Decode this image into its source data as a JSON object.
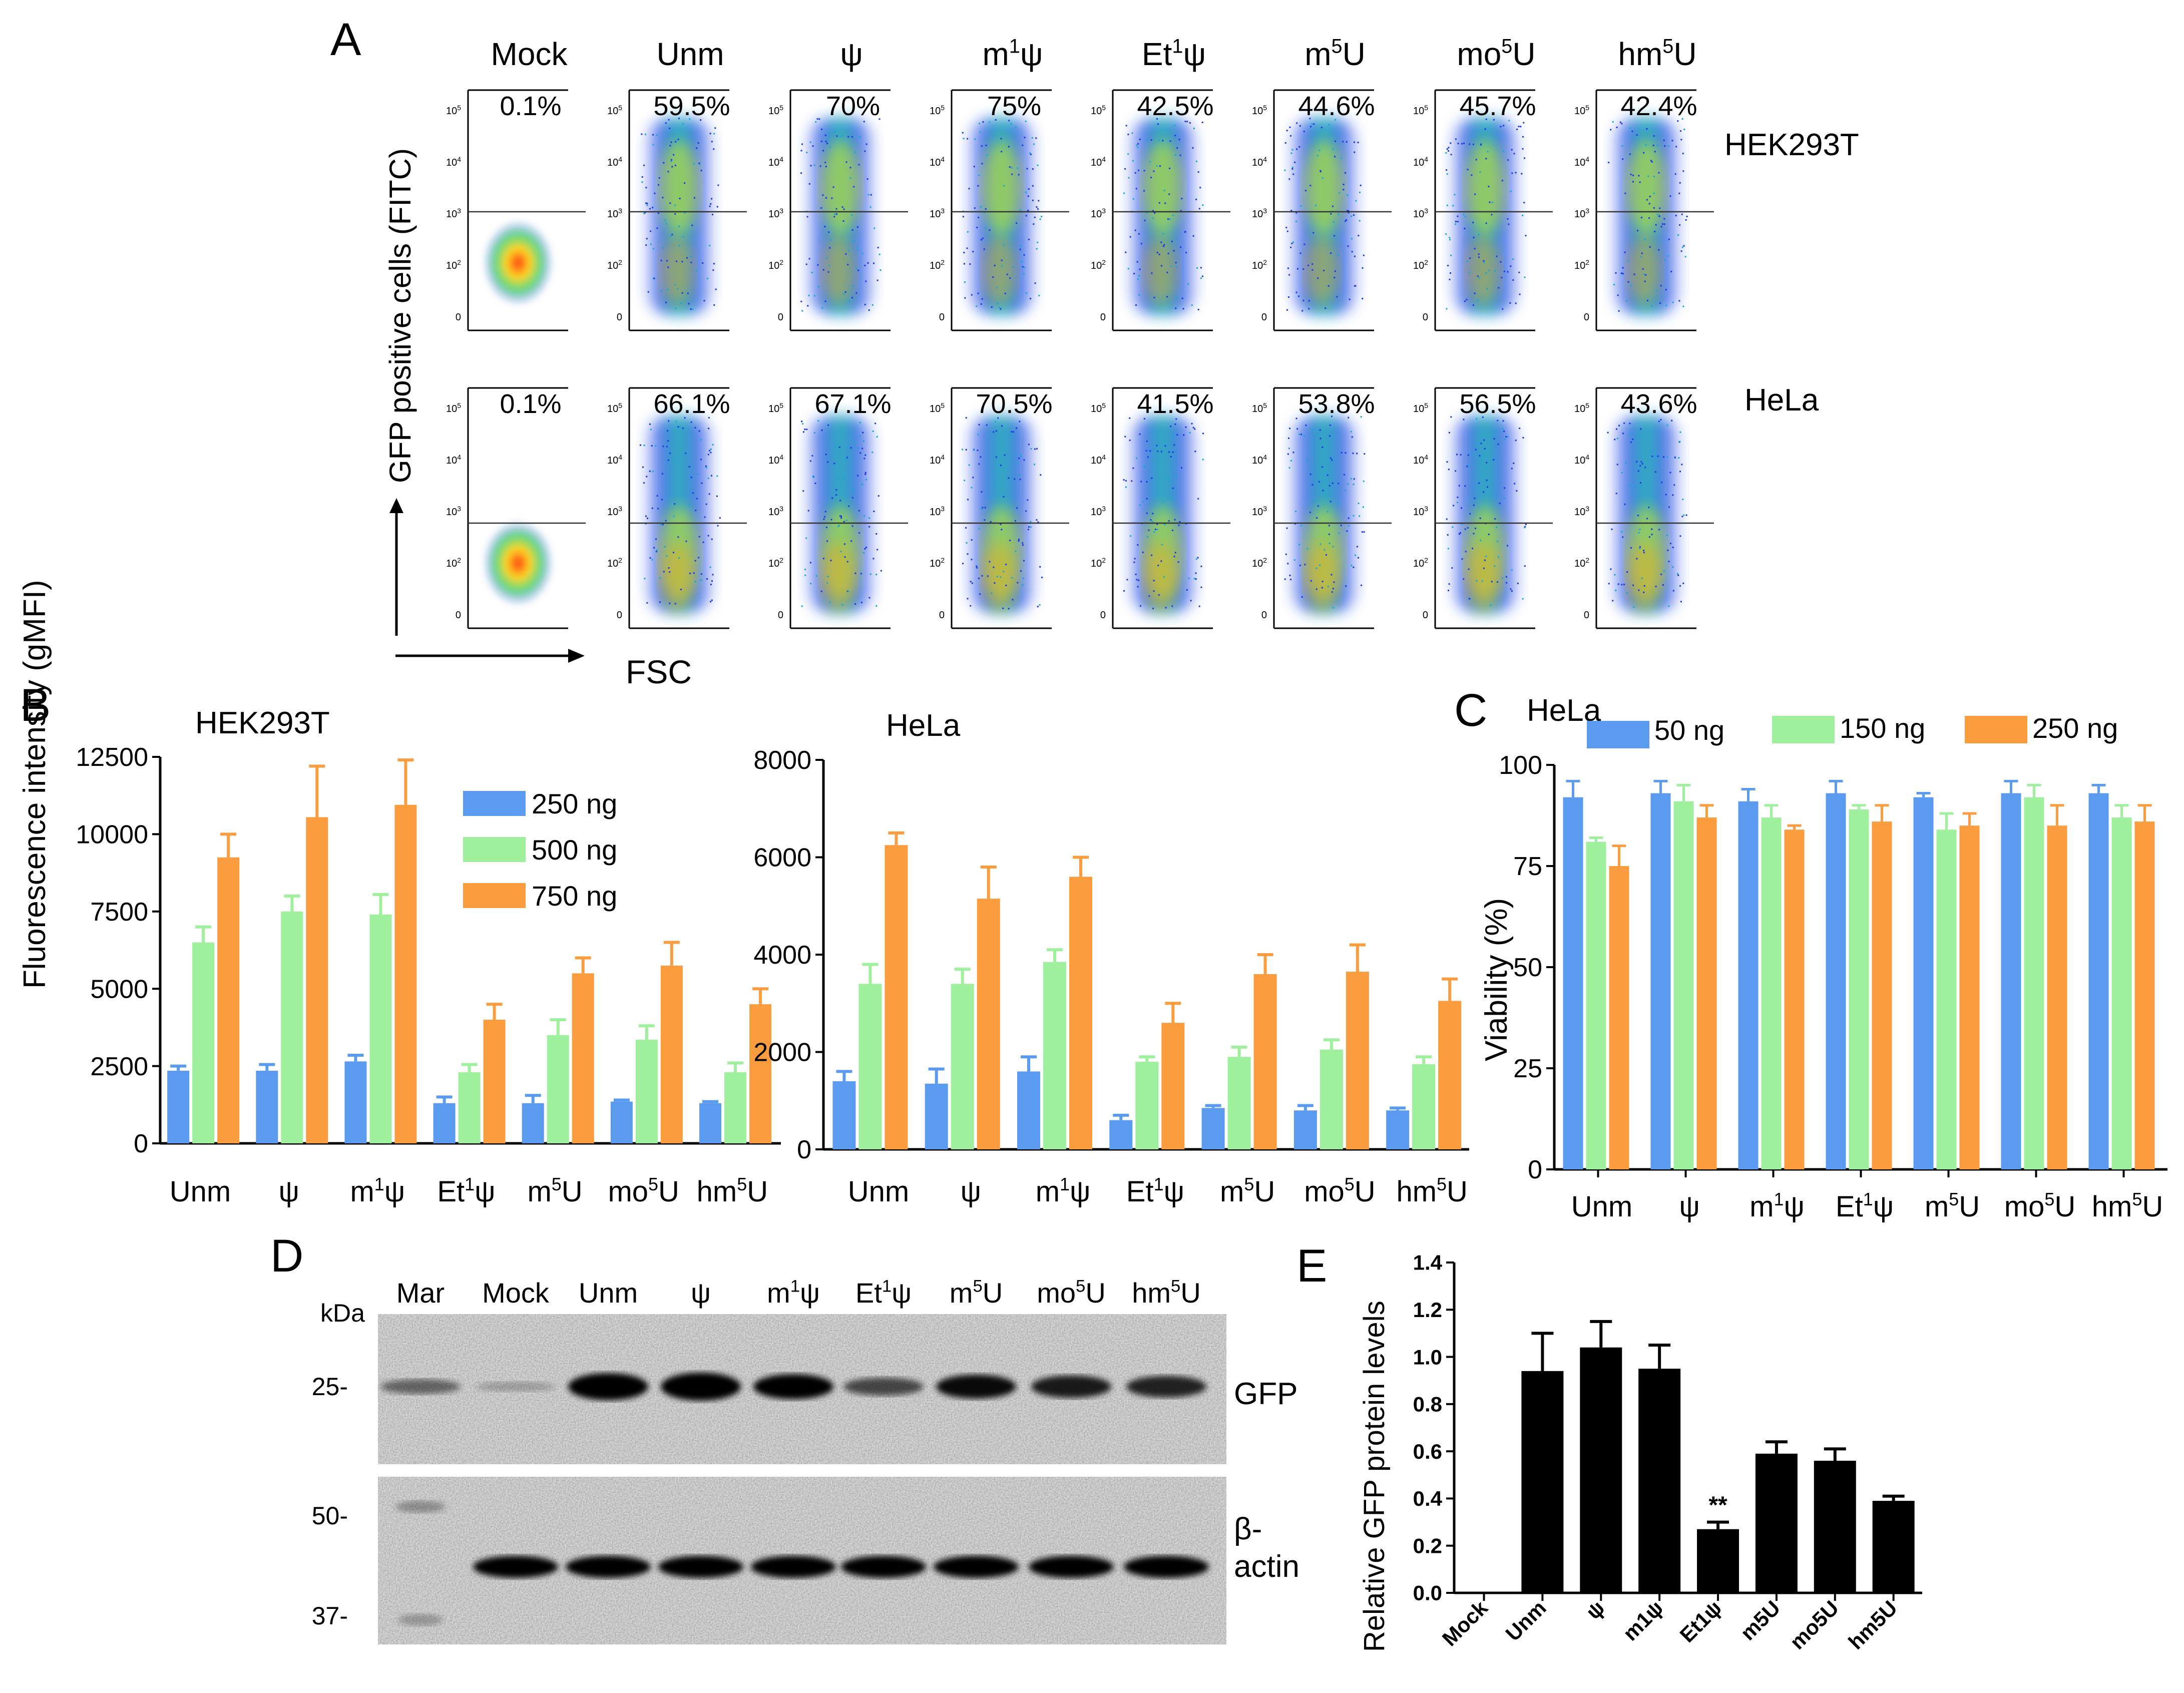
{
  "panels": {
    "A": "A",
    "B": "B",
    "C": "C",
    "D": "D",
    "E": "E"
  },
  "panel_a": {
    "columns": [
      {
        "t": "Mock",
        "sup": "",
        "s": ""
      },
      {
        "t": "Unm",
        "sup": "",
        "s": ""
      },
      {
        "t": "ψ",
        "sup": "",
        "s": ""
      },
      {
        "t": "m",
        "sup": "1",
        "s": "ψ"
      },
      {
        "t": "Et",
        "sup": "1",
        "s": "ψ"
      },
      {
        "t": "m",
        "sup": "5",
        "s": "U"
      },
      {
        "t": "mo",
        "sup": "5",
        "s": "U"
      },
      {
        "t": "hm",
        "sup": "5",
        "s": "U"
      }
    ],
    "rows": [
      {
        "cell": "HEK293T",
        "percent": [
          "0.1%",
          "59.5%",
          "70%",
          "75%",
          "42.5%",
          "44.6%",
          "45.7%",
          "42.4%"
        ]
      },
      {
        "cell": "HeLa",
        "percent": [
          "0.1%",
          "66.1%",
          "67.1%",
          "70.5%",
          "41.5%",
          "53.8%",
          "56.5%",
          "43.6%"
        ]
      }
    ],
    "ylabel": "GFP positive cells (FITC)",
    "xlabel": "FSC",
    "yticks": [
      {
        "b": "10",
        "e": "5"
      },
      {
        "b": "10",
        "e": "4"
      },
      {
        "b": "10",
        "e": "3"
      },
      {
        "b": "10",
        "e": "2"
      },
      {
        "b": "0",
        "e": ""
      }
    ]
  },
  "mods": [
    {
      "t": "Unm",
      "sup": "",
      "s": ""
    },
    {
      "t": "ψ",
      "sup": "",
      "s": ""
    },
    {
      "t": "m",
      "sup": "1",
      "s": "ψ"
    },
    {
      "t": "Et",
      "sup": "1",
      "s": "ψ"
    },
    {
      "t": "m",
      "sup": "5",
      "s": "U"
    },
    {
      "t": "mo",
      "sup": "5",
      "s": "U"
    },
    {
      "t": "hm",
      "sup": "5",
      "s": "U"
    }
  ],
  "colors": {
    "blue": "#5b9bef",
    "green": "#9ff09d",
    "orange": "#fb9d3f",
    "black": "#000000",
    "blot_bg": "#d6d6d6"
  },
  "chart_data": [
    {
      "id": "B-HEK293T",
      "type": "bar",
      "title": "HEK293T",
      "ylabel": "Fluorescence intensity (gMFI)",
      "ylim": [
        0,
        12500
      ],
      "yticks": [
        0,
        2500,
        5000,
        7500,
        10000,
        12500
      ],
      "categories": [
        "Unm",
        "ψ",
        "m1ψ",
        "Et1ψ",
        "m5U",
        "mo5U",
        "hm5U"
      ],
      "series": [
        {
          "name": "250 ng",
          "color": "blue",
          "values": [
            2350,
            2350,
            2650,
            1300,
            1300,
            1350,
            1300
          ],
          "errors": [
            150,
            200,
            200,
            200,
            250,
            50,
            50
          ]
        },
        {
          "name": "500 ng",
          "color": "green",
          "values": [
            6500,
            7500,
            7400,
            2300,
            3500,
            3350,
            2300
          ],
          "errors": [
            500,
            500,
            650,
            250,
            500,
            450,
            300
          ]
        },
        {
          "name": "750 ng",
          "color": "orange",
          "values": [
            9250,
            10550,
            10950,
            4000,
            5500,
            5750,
            4500
          ],
          "errors": [
            750,
            1650,
            1450,
            500,
            500,
            750,
            500
          ]
        }
      ]
    },
    {
      "id": "B-HeLa",
      "type": "bar",
      "title": "HeLa",
      "ylabel": "",
      "ylim": [
        0,
        8000
      ],
      "yticks": [
        0,
        2000,
        4000,
        6000,
        8000
      ],
      "categories": [
        "Unm",
        "ψ",
        "m1ψ",
        "Et1ψ",
        "m5U",
        "mo5U",
        "hm5U"
      ],
      "series": [
        {
          "name": "250 ng",
          "color": "blue",
          "values": [
            1400,
            1350,
            1600,
            600,
            850,
            800,
            800
          ],
          "errors": [
            200,
            300,
            300,
            100,
            50,
            100,
            50
          ]
        },
        {
          "name": "500 ng",
          "color": "green",
          "values": [
            3400,
            3400,
            3850,
            1800,
            1900,
            2050,
            1750
          ],
          "errors": [
            400,
            300,
            250,
            100,
            200,
            200,
            150
          ]
        },
        {
          "name": "750 ng",
          "color": "orange",
          "values": [
            6250,
            5150,
            5600,
            2600,
            3600,
            3650,
            3050
          ],
          "errors": [
            250,
            650,
            400,
            400,
            400,
            550,
            450
          ]
        }
      ]
    },
    {
      "id": "C",
      "type": "bar",
      "title": "HeLa",
      "ylabel": "Viability (%)",
      "ylim": [
        0,
        100
      ],
      "yticks": [
        0,
        25,
        50,
        75,
        100
      ],
      "categories": [
        "Unm",
        "ψ",
        "m1ψ",
        "Et1ψ",
        "m5U",
        "mo5U",
        "hm5U"
      ],
      "series": [
        {
          "name": "50 ng",
          "color": "blue",
          "values": [
            92,
            93,
            91,
            93,
            92,
            93,
            93
          ],
          "errors": [
            4,
            3,
            3,
            3,
            1,
            3,
            2
          ]
        },
        {
          "name": "150 ng",
          "color": "green",
          "values": [
            81,
            91,
            87,
            89,
            84,
            92,
            87
          ],
          "errors": [
            1,
            4,
            3,
            1,
            4,
            3,
            3
          ]
        },
        {
          "name": "250 ng",
          "color": "orange",
          "values": [
            75,
            87,
            84,
            86,
            85,
            85,
            86
          ],
          "errors": [
            5,
            3,
            1,
            4,
            3,
            5,
            4
          ]
        }
      ]
    },
    {
      "id": "E",
      "type": "bar",
      "title": "",
      "ylabel": "Relative GFP protein levels",
      "ylim": [
        0,
        1.4
      ],
      "yticks": [
        "0.0",
        "0.2",
        "0.4",
        "0.6",
        "0.8",
        "1.0",
        "1.2",
        "1.4"
      ],
      "categories": [
        "Mock",
        "Unm",
        "ψ",
        "m1ψ",
        "Et1ψ",
        "m5U",
        "mo5U",
        "hm5U"
      ],
      "series": [
        {
          "name": "GFP",
          "color": "black",
          "values": [
            0,
            0.94,
            1.04,
            0.95,
            0.27,
            0.59,
            0.56,
            0.39
          ],
          "errors": [
            0,
            0.16,
            0.11,
            0.1,
            0.03,
            0.05,
            0.05,
            0.02
          ]
        }
      ],
      "annotation": "**"
    }
  ],
  "panel_b_legend": [
    "250 ng",
    "500 ng",
    "750 ng"
  ],
  "panel_c_legend": [
    "50 ng",
    "150 ng",
    "250 ng"
  ],
  "panel_d": {
    "lanes": [
      {
        "t": "Mar",
        "sup": "",
        "s": ""
      },
      {
        "t": "Mock",
        "sup": "",
        "s": ""
      },
      {
        "t": "Unm",
        "sup": "",
        "s": ""
      },
      {
        "t": "ψ",
        "sup": "",
        "s": ""
      },
      {
        "t": "m",
        "sup": "1",
        "s": "ψ"
      },
      {
        "t": "Et",
        "sup": "1",
        "s": "ψ"
      },
      {
        "t": "m",
        "sup": "5",
        "s": "U"
      },
      {
        "t": "mo",
        "sup": "5",
        "s": "U"
      },
      {
        "t": "hm",
        "sup": "5",
        "s": "U"
      }
    ],
    "kda": "kDa",
    "markers": [
      "25-",
      "50-",
      "37-"
    ],
    "gfp_label": "GFP",
    "actin_label_1": "β-",
    "actin_label_2": "actin",
    "gfp_band_intensity": [
      0.35,
      0.08,
      0.95,
      1.0,
      0.85,
      0.5,
      0.8,
      0.72,
      0.68
    ],
    "actin_band_intensity": [
      0.2,
      0.9,
      0.9,
      0.95,
      0.9,
      0.9,
      0.9,
      0.9,
      0.92
    ]
  }
}
